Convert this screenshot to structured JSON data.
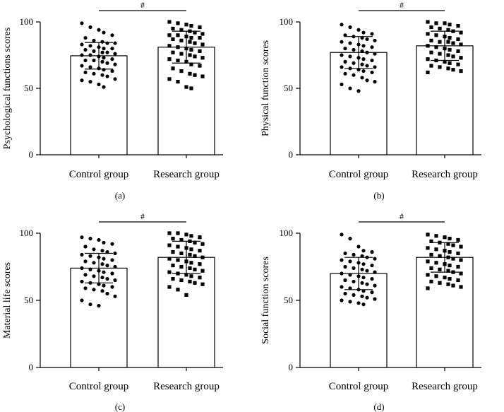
{
  "chart_data": [
    {
      "type": "bar",
      "panel": "(a)",
      "ylabel": "Psychological functions scores",
      "categories": [
        "Control group",
        "Research group"
      ],
      "values": [
        74.5,
        81
      ],
      "sd": [
        10,
        12
      ],
      "ylim": [
        0,
        100
      ],
      "yticks": [
        0,
        50,
        100
      ],
      "significance": "#",
      "points": [
        [
          99,
          96,
          94,
          92,
          90,
          88,
          86,
          85,
          84,
          84,
          83,
          82,
          81,
          80,
          80,
          79,
          78,
          77,
          77,
          76,
          75,
          75,
          74,
          73,
          72,
          71,
          71,
          70,
          69,
          68,
          67,
          66,
          65,
          64,
          63,
          62,
          61,
          60,
          59,
          57,
          56,
          55,
          53,
          51
        ],
        [
          100,
          99,
          98,
          97,
          96,
          95,
          94,
          93,
          92,
          91,
          90,
          90,
          89,
          88,
          88,
          87,
          86,
          85,
          84,
          83,
          82,
          81,
          80,
          79,
          78,
          77,
          76,
          75,
          74,
          73,
          72,
          71,
          70,
          68,
          67,
          65,
          63,
          61,
          60,
          59,
          57,
          55,
          51,
          50
        ]
      ]
    },
    {
      "type": "bar",
      "panel": "(b)",
      "ylabel": "Physical function scores",
      "categories": [
        "Control group",
        "Research group"
      ],
      "values": [
        77,
        82
      ],
      "sd": [
        12,
        11
      ],
      "ylim": [
        0,
        100
      ],
      "yticks": [
        0,
        50,
        100
      ],
      "significance": "#",
      "points": [
        [
          98,
          96,
          94,
          92,
          91,
          90,
          89,
          88,
          87,
          86,
          85,
          84,
          83,
          82,
          81,
          80,
          79,
          78,
          77,
          76,
          75,
          74,
          73,
          72,
          71,
          70,
          69,
          68,
          67,
          66,
          66,
          65,
          64,
          63,
          62,
          61,
          60,
          58,
          56,
          55,
          53,
          50,
          48
        ],
        [
          100,
          99,
          99,
          98,
          97,
          96,
          95,
          94,
          93,
          92,
          91,
          90,
          89,
          88,
          87,
          86,
          85,
          85,
          84,
          83,
          82,
          81,
          80,
          79,
          78,
          77,
          76,
          75,
          74,
          73,
          72,
          71,
          70,
          69,
          68,
          67,
          66,
          65,
          64,
          63,
          62
        ]
      ]
    },
    {
      "type": "bar",
      "panel": "(c)",
      "ylabel": "Material life scores",
      "categories": [
        "Control group",
        "Research group"
      ],
      "values": [
        74,
        82
      ],
      "sd": [
        11,
        12
      ],
      "ylim": [
        0,
        100
      ],
      "yticks": [
        0,
        50,
        100
      ],
      "significance": "#",
      "points": [
        [
          97,
          96,
          95,
          93,
          92,
          90,
          88,
          87,
          86,
          85,
          84,
          83,
          82,
          81,
          80,
          79,
          78,
          77,
          76,
          75,
          74,
          73,
          72,
          71,
          70,
          69,
          68,
          67,
          66,
          65,
          64,
          63,
          62,
          61,
          60,
          59,
          58,
          57,
          55,
          53,
          50,
          47,
          46
        ],
        [
          100,
          100,
          99,
          98,
          97,
          96,
          95,
          94,
          93,
          92,
          91,
          90,
          89,
          88,
          87,
          86,
          85,
          84,
          83,
          82,
          81,
          80,
          79,
          78,
          77,
          76,
          75,
          74,
          73,
          72,
          71,
          70,
          69,
          68,
          67,
          66,
          65,
          64,
          63,
          62,
          60,
          58,
          54
        ]
      ]
    },
    {
      "type": "bar",
      "panel": "(d)",
      "ylabel": "Social function scores",
      "categories": [
        "Control group",
        "Research group"
      ],
      "values": [
        70,
        82
      ],
      "sd": [
        12,
        11
      ],
      "ylim": [
        0,
        100
      ],
      "yticks": [
        0,
        50,
        100
      ],
      "significance": "#",
      "points": [
        [
          99,
          96,
          90,
          87,
          86,
          85,
          84,
          83,
          82,
          81,
          80,
          79,
          78,
          77,
          76,
          75,
          74,
          73,
          72,
          71,
          70,
          69,
          68,
          67,
          66,
          65,
          64,
          63,
          62,
          61,
          60,
          59,
          58,
          57,
          56,
          55,
          54,
          53,
          52,
          51,
          50,
          49,
          48,
          47
        ],
        [
          99,
          98,
          97,
          96,
          95,
          94,
          93,
          92,
          91,
          90,
          89,
          88,
          87,
          86,
          85,
          84,
          83,
          82,
          81,
          80,
          79,
          78,
          77,
          76,
          75,
          74,
          73,
          72,
          71,
          70,
          69,
          68,
          67,
          66,
          65,
          64,
          63,
          62,
          61,
          60,
          59
        ]
      ]
    }
  ]
}
